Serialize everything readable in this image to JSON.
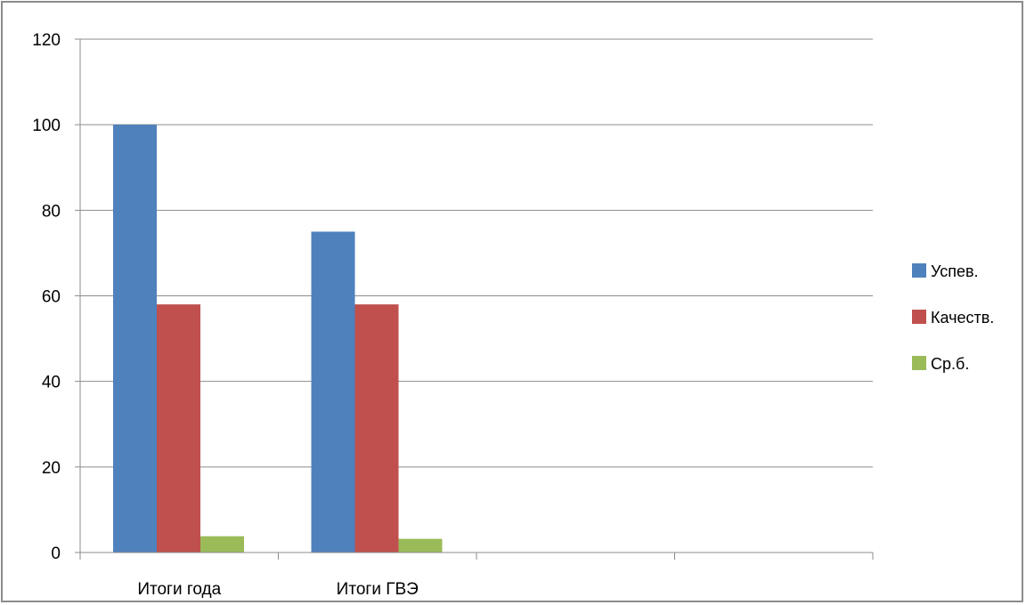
{
  "chart_data": {
    "type": "bar",
    "title": "",
    "xlabel": "",
    "ylabel": "",
    "categories": [
      "Итоги года",
      "Итоги ГВЭ",
      "",
      ""
    ],
    "series": [
      {
        "name": "Успев.",
        "color": "#4f81bd",
        "values": [
          100,
          75,
          null,
          null
        ]
      },
      {
        "name": "Качеств.",
        "color": "#c0504d",
        "values": [
          58,
          58,
          null,
          null
        ]
      },
      {
        "name": "Ср.б.",
        "color": "#9bbb59",
        "values": [
          3.8,
          3.2,
          null,
          null
        ]
      }
    ],
    "ylim": [
      0,
      120
    ],
    "yticks": [
      0,
      20,
      40,
      60,
      80,
      100,
      120
    ],
    "grid": true,
    "legend_position": "right"
  }
}
